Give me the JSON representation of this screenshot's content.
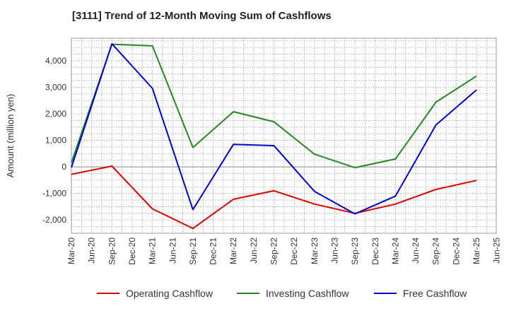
{
  "chart_data": {
    "type": "line",
    "title": "[3111]  Trend of 12-Month Moving Sum of Cashflows",
    "xlabel": "",
    "ylabel": "Amount (million yen)",
    "x_ticks": [
      "Mar-20",
      "Jun-20",
      "Sep-20",
      "Dec-20",
      "Mar-21",
      "Jun-21",
      "Sep-21",
      "Dec-21",
      "Mar-22",
      "Jun-22",
      "Sep-22",
      "Dec-22",
      "Mar-23",
      "Jun-23",
      "Sep-23",
      "Dec-23",
      "Mar-24",
      "Jun-24",
      "Sep-24",
      "Dec-24",
      "Mar-25",
      "Jun-25"
    ],
    "y_ticks": [
      4000,
      3000,
      2000,
      1000,
      0,
      -1000,
      -2000
    ],
    "y_tick_labels": [
      "4,000",
      "3,000",
      "2,000",
      "1,000",
      "0",
      "-1,000",
      "-2,000"
    ],
    "ylim": [
      -2500,
      4850
    ],
    "grid": true,
    "legend_position": "bottom",
    "series": [
      {
        "name": "Operating Cashflow",
        "color": "#dd0000",
        "x": [
          "Mar-20",
          "Sep-20",
          "Mar-21",
          "Sep-21",
          "Mar-22",
          "Sep-22",
          "Mar-23",
          "Sep-23",
          "Mar-24",
          "Sep-24",
          "Mar-25"
        ],
        "values": [
          -280,
          30,
          -1580,
          -2320,
          -1220,
          -900,
          -1400,
          -1750,
          -1400,
          -850,
          -510
        ]
      },
      {
        "name": "Investing Cashflow",
        "color": "#228822",
        "x": [
          "Mar-20",
          "Sep-20",
          "Mar-21",
          "Sep-21",
          "Mar-22",
          "Sep-22",
          "Mar-23",
          "Sep-23",
          "Mar-24",
          "Sep-24",
          "Mar-25"
        ],
        "values": [
          160,
          4620,
          4560,
          730,
          2080,
          1700,
          480,
          -30,
          300,
          2440,
          3420
        ]
      },
      {
        "name": "Free Cashflow",
        "color": "#0000cc",
        "x": [
          "Mar-20",
          "Sep-20",
          "Mar-21",
          "Sep-21",
          "Mar-22",
          "Sep-22",
          "Mar-23",
          "Sep-23",
          "Mar-24",
          "Sep-24",
          "Mar-25"
        ],
        "values": [
          -20,
          4640,
          2960,
          -1610,
          850,
          800,
          -920,
          -1770,
          -1100,
          1580,
          2900
        ]
      }
    ]
  }
}
